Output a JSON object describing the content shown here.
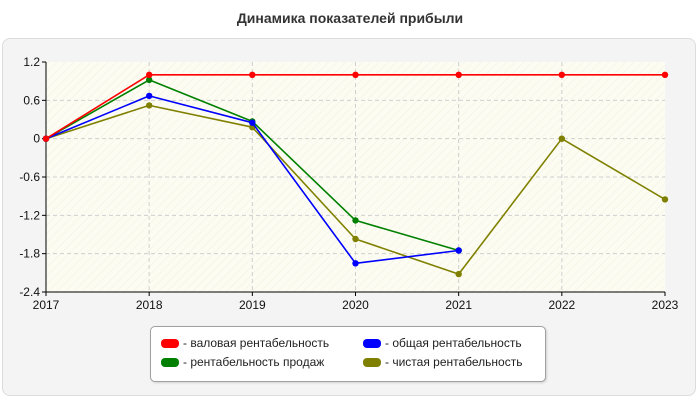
{
  "chart_data": {
    "type": "line",
    "title": "Динамика показателей прибыли",
    "xlabel": "",
    "ylabel": "",
    "categories": [
      "2017",
      "2018",
      "2019",
      "2020",
      "2021",
      "2022",
      "2023"
    ],
    "yticks": [
      "1.2",
      "0.6",
      "0",
      "-0.6",
      "-1.2",
      "-1.8",
      "-2.4"
    ],
    "ylim": [
      -2.4,
      1.2
    ],
    "grid": true,
    "legend_position": "bottom",
    "series": [
      {
        "name": "валовая рентабельность",
        "color": "#ff0000",
        "values": [
          0,
          1,
          1,
          1,
          1,
          1,
          1
        ]
      },
      {
        "name": "общая рентабельность",
        "color": "#0000ff",
        "values": [
          0,
          0.67,
          0.25,
          -1.95,
          -1.75,
          null,
          null
        ]
      },
      {
        "name": "рентабельность продаж",
        "color": "#008000",
        "values": [
          0,
          0.92,
          0.27,
          -1.28,
          -1.75,
          null,
          null
        ]
      },
      {
        "name": "чистая рентабельность",
        "color": "#808000",
        "values": [
          0,
          0.52,
          0.18,
          -1.57,
          -2.12,
          0,
          -0.95
        ]
      }
    ]
  }
}
